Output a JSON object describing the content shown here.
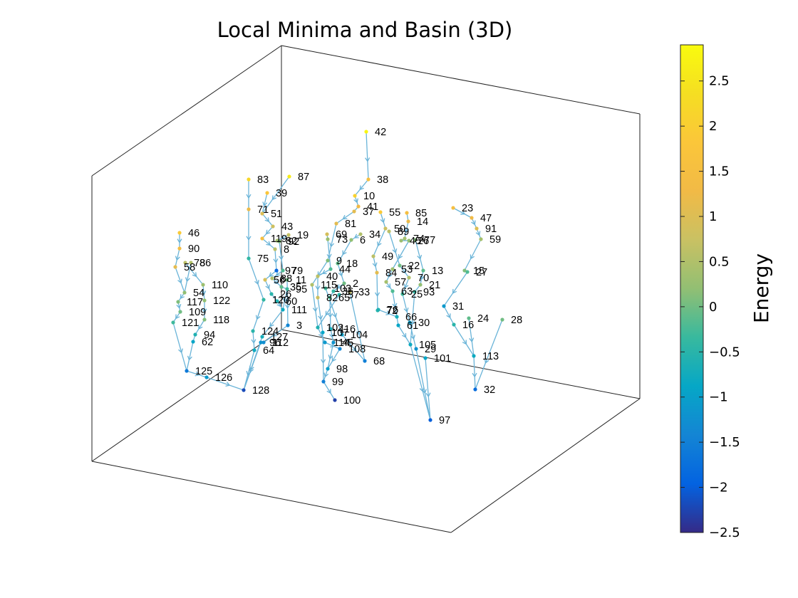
{
  "chart_data": {
    "type": "scatter",
    "subtype": "3d-network",
    "title": "Local Minima and Basin (3D)",
    "colorbar": {
      "label": "Energy",
      "limits": [
        -2.5,
        2.9
      ],
      "ticks": [
        2.5,
        2,
        1.5,
        1,
        0.5,
        0,
        -0.5,
        -1,
        -1.5,
        -2,
        -2.5
      ],
      "tick_labels": [
        "2.5",
        "2",
        "1.5",
        "1",
        "0.5",
        "0",
        "−0.5",
        "−1",
        "−1.5",
        "−2",
        "−2.5"
      ],
      "colormap": "parula"
    },
    "grid": false,
    "nodes": [
      {
        "id": "42",
        "energy": 2.8
      },
      {
        "id": "38",
        "energy": 1.6
      },
      {
        "id": "10",
        "energy": 2.1
      },
      {
        "id": "41",
        "energy": 1.3
      },
      {
        "id": "37",
        "energy": 1.1
      },
      {
        "id": "83",
        "energy": 2.2
      },
      {
        "id": "87",
        "energy": 2.6
      },
      {
        "id": "39",
        "energy": 1.8
      },
      {
        "id": "71",
        "energy": 1.2
      },
      {
        "id": "51",
        "energy": 1.0
      },
      {
        "id": "43",
        "energy": 0.8
      },
      {
        "id": "46",
        "energy": 1.9
      },
      {
        "id": "90",
        "energy": 1.4
      },
      {
        "id": "58",
        "energy": 1.1
      },
      {
        "id": "78",
        "energy": 0.6
      },
      {
        "id": "86",
        "energy": 0.5
      },
      {
        "id": "110",
        "energy": 0.3
      },
      {
        "id": "54",
        "energy": 0.2
      },
      {
        "id": "117",
        "energy": 0.1
      },
      {
        "id": "122",
        "energy": 0.2
      },
      {
        "id": "109",
        "energy": 0.0
      },
      {
        "id": "118",
        "energy": 0.1
      },
      {
        "id": "121",
        "energy": -0.3
      },
      {
        "id": "94",
        "energy": -0.6
      },
      {
        "id": "62",
        "energy": -0.9
      },
      {
        "id": "125",
        "energy": -1.6
      },
      {
        "id": "126",
        "energy": -1.1
      },
      {
        "id": "128",
        "energy": -2.2
      },
      {
        "id": "64",
        "energy": -0.8
      },
      {
        "id": "124",
        "energy": -0.5
      },
      {
        "id": "127",
        "energy": -0.7
      },
      {
        "id": "112",
        "energy": -1.3
      },
      {
        "id": "96",
        "energy": -1.2
      },
      {
        "id": "75",
        "energy": -0.4
      },
      {
        "id": "119",
        "energy": 1.5
      },
      {
        "id": "19",
        "energy": 0.7
      },
      {
        "id": "8",
        "energy": 0.6
      },
      {
        "id": "97",
        "energy": -1.9
      },
      {
        "id": "82",
        "energy": 0.4
      },
      {
        "id": "92",
        "energy": 0.1
      },
      {
        "id": "79",
        "energy": -0.2
      },
      {
        "id": "56",
        "energy": 0.9
      },
      {
        "id": "88",
        "energy": 0.5
      },
      {
        "id": "11",
        "energy": 0.0
      },
      {
        "id": "35",
        "energy": -0.1
      },
      {
        "id": "95",
        "energy": -0.3
      },
      {
        "id": "120",
        "energy": -0.4
      },
      {
        "id": "26",
        "energy": -0.5
      },
      {
        "id": "60",
        "energy": -0.6
      },
      {
        "id": "111",
        "energy": -0.8
      },
      {
        "id": "3",
        "energy": -1.4
      },
      {
        "id": "81",
        "energy": 1.1
      },
      {
        "id": "34",
        "energy": 0.5
      },
      {
        "id": "69",
        "energy": 0.9
      },
      {
        "id": "73",
        "energy": 0.3
      },
      {
        "id": "6",
        "energy": 0.2
      },
      {
        "id": "9",
        "energy": 0.1
      },
      {
        "id": "18",
        "energy": -0.1
      },
      {
        "id": "44",
        "energy": -0.2
      },
      {
        "id": "40",
        "energy": 0.6
      },
      {
        "id": "115",
        "energy": 0.5
      },
      {
        "id": "2",
        "energy": 0.0
      },
      {
        "id": "103",
        "energy": -0.3
      },
      {
        "id": "36",
        "energy": -0.4
      },
      {
        "id": "82b",
        "energy": 0.8
      },
      {
        "id": "65",
        "energy": -0.2
      },
      {
        "id": "57",
        "energy": -0.5
      },
      {
        "id": "33",
        "energy": 0.7
      },
      {
        "id": "102",
        "energy": -0.6
      },
      {
        "id": "116",
        "energy": -0.7
      },
      {
        "id": "107",
        "energy": -0.9
      },
      {
        "id": "104",
        "energy": -1.0
      },
      {
        "id": "114",
        "energy": -1.1
      },
      {
        "id": "45",
        "energy": -1.2
      },
      {
        "id": "108",
        "energy": -1.4
      },
      {
        "id": "98",
        "energy": -1.0
      },
      {
        "id": "99",
        "energy": -1.5
      },
      {
        "id": "100",
        "energy": -2.3
      },
      {
        "id": "68",
        "energy": -1.5
      },
      {
        "id": "55",
        "energy": 1.9
      },
      {
        "id": "85",
        "energy": 1.5
      },
      {
        "id": "14",
        "energy": 1.2
      },
      {
        "id": "50",
        "energy": 0.8
      },
      {
        "id": "89",
        "energy": 0.6
      },
      {
        "id": "74",
        "energy": 0.4
      },
      {
        "id": "45b",
        "energy": 0.3
      },
      {
        "id": "26b",
        "energy": 0.2
      },
      {
        "id": "77",
        "energy": 0.1
      },
      {
        "id": "49",
        "energy": 0.6
      },
      {
        "id": "84",
        "energy": 1.1
      },
      {
        "id": "53",
        "energy": 0.3
      },
      {
        "id": "22",
        "energy": 0.0
      },
      {
        "id": "13",
        "energy": -0.1
      },
      {
        "id": "57b",
        "energy": 0.4
      },
      {
        "id": "70",
        "energy": 0.5
      },
      {
        "id": "21",
        "energy": 0.2
      },
      {
        "id": "63",
        "energy": -0.2
      },
      {
        "id": "25",
        "energy": -0.3
      },
      {
        "id": "93",
        "energy": -0.4
      },
      {
        "id": "72",
        "energy": -0.5
      },
      {
        "id": "76",
        "energy": -0.6
      },
      {
        "id": "66",
        "energy": -0.7
      },
      {
        "id": "61",
        "energy": -0.9
      },
      {
        "id": "30",
        "energy": -1.0
      },
      {
        "id": "105",
        "energy": -0.8
      },
      {
        "id": "29",
        "energy": -1.2
      },
      {
        "id": "101",
        "energy": -0.9
      },
      {
        "id": "97b",
        "energy": -2.0
      },
      {
        "id": "23",
        "energy": 1.5
      },
      {
        "id": "47",
        "energy": 1.3
      },
      {
        "id": "91",
        "energy": 1.0
      },
      {
        "id": "59",
        "energy": 0.4
      },
      {
        "id": "15",
        "energy": 0.1
      },
      {
        "id": "27",
        "energy": -0.2
      },
      {
        "id": "31",
        "energy": -1.1
      },
      {
        "id": "24",
        "energy": -0.1
      },
      {
        "id": "16",
        "energy": -0.5
      },
      {
        "id": "28",
        "energy": 0.0
      },
      {
        "id": "113",
        "energy": -0.8
      },
      {
        "id": "32",
        "energy": -1.8
      }
    ]
  }
}
